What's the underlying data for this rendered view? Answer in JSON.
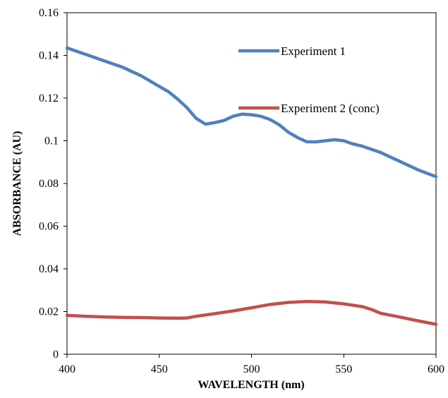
{
  "chart_data": {
    "type": "line",
    "xlabel": "WAVELENGTH (nm)",
    "ylabel": "ABSORBANCE (AU)",
    "xlim": [
      400,
      600
    ],
    "ylim": [
      0,
      0.16
    ],
    "x_ticks": [
      "400",
      "450",
      "500",
      "550",
      "600"
    ],
    "y_ticks": [
      "0",
      "0.02",
      "0.04",
      "0.06",
      "0.08",
      "0.1",
      "0.12",
      "0.14",
      "0.16"
    ],
    "grid": false,
    "legend_position": "top-right, inside plot",
    "series": [
      {
        "name": "Experiment 1",
        "color": "#4f81bd",
        "points": [
          [
            400,
            0.1435
          ],
          [
            405,
            0.142
          ],
          [
            410,
            0.1405
          ],
          [
            415,
            0.139
          ],
          [
            420,
            0.1375
          ],
          [
            425,
            0.136
          ],
          [
            430,
            0.1345
          ],
          [
            435,
            0.1325
          ],
          [
            440,
            0.1305
          ],
          [
            445,
            0.128
          ],
          [
            450,
            0.1255
          ],
          [
            455,
            0.123
          ],
          [
            460,
            0.1195
          ],
          [
            465,
            0.1155
          ],
          [
            470,
            0.1105
          ],
          [
            475,
            0.1078
          ],
          [
            480,
            0.1085
          ],
          [
            485,
            0.1095
          ],
          [
            490,
            0.1115
          ],
          [
            495,
            0.1125
          ],
          [
            500,
            0.1122
          ],
          [
            505,
            0.1115
          ],
          [
            510,
            0.11
          ],
          [
            515,
            0.1075
          ],
          [
            520,
            0.104
          ],
          [
            525,
            0.1015
          ],
          [
            530,
            0.0995
          ],
          [
            535,
            0.0995
          ],
          [
            540,
            0.1
          ],
          [
            545,
            0.1005
          ],
          [
            550,
            0.1
          ],
          [
            555,
            0.0985
          ],
          [
            560,
            0.0975
          ],
          [
            565,
            0.096
          ],
          [
            570,
            0.0945
          ],
          [
            575,
            0.0925
          ],
          [
            580,
            0.0905
          ],
          [
            585,
            0.0885
          ],
          [
            590,
            0.0865
          ],
          [
            595,
            0.0848
          ],
          [
            600,
            0.0832
          ]
        ]
      },
      {
        "name": "Experiment 2 (conc)",
        "color": "#c0504d",
        "points": [
          [
            400,
            0.0182
          ],
          [
            410,
            0.0178
          ],
          [
            420,
            0.0175
          ],
          [
            430,
            0.0173
          ],
          [
            440,
            0.0172
          ],
          [
            450,
            0.017
          ],
          [
            460,
            0.0169
          ],
          [
            465,
            0.017
          ],
          [
            470,
            0.0178
          ],
          [
            480,
            0.019
          ],
          [
            490,
            0.0203
          ],
          [
            500,
            0.0218
          ],
          [
            510,
            0.0233
          ],
          [
            520,
            0.0243
          ],
          [
            530,
            0.0247
          ],
          [
            540,
            0.0245
          ],
          [
            550,
            0.0236
          ],
          [
            560,
            0.0223
          ],
          [
            565,
            0.021
          ],
          [
            570,
            0.0192
          ],
          [
            580,
            0.0175
          ],
          [
            590,
            0.0157
          ],
          [
            600,
            0.014
          ]
        ]
      }
    ]
  }
}
